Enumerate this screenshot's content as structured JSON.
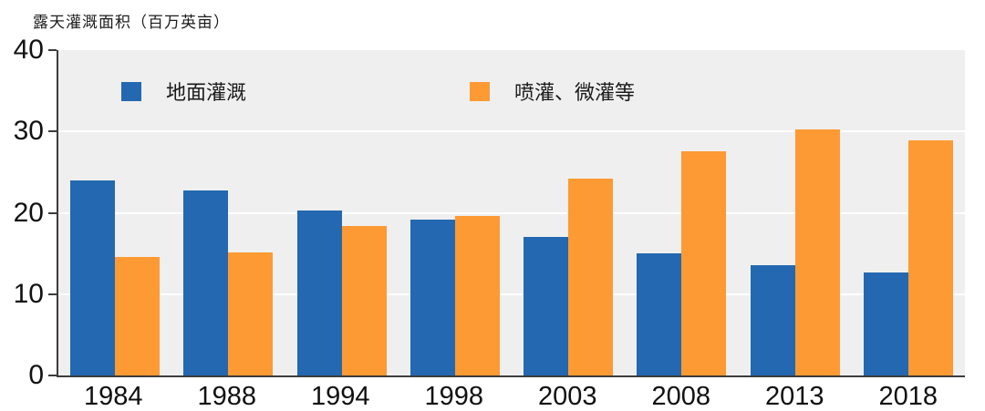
{
  "chart_data": {
    "type": "bar",
    "title": "露天灌溉面积（百万英亩）",
    "categories": [
      "1984",
      "1988",
      "1994",
      "1998",
      "2003",
      "2008",
      "2013",
      "2018"
    ],
    "series": [
      {
        "name": "地面灌溉",
        "color": "#2368b0",
        "values": [
          24.0,
          22.8,
          20.3,
          19.2,
          17.0,
          15.0,
          13.6,
          12.7
        ]
      },
      {
        "name": "喷灌、微灌等",
        "color": "#fd9a33",
        "values": [
          14.6,
          15.1,
          18.4,
          19.6,
          24.2,
          27.6,
          30.3,
          28.9
        ]
      }
    ],
    "xlabel": "",
    "ylabel": "露天灌溉面积（百万英亩）",
    "ylim": [
      0,
      40
    ],
    "yticks": [
      0,
      10,
      20,
      30,
      40
    ],
    "gridline_values": [
      10,
      20,
      30
    ],
    "grid": "horizontal",
    "legend_position": "top-inside",
    "colors": {
      "plot_background": "#efefef",
      "gridline": "#ffffff",
      "axis": "#3c3c3c",
      "text": "#111111"
    }
  }
}
